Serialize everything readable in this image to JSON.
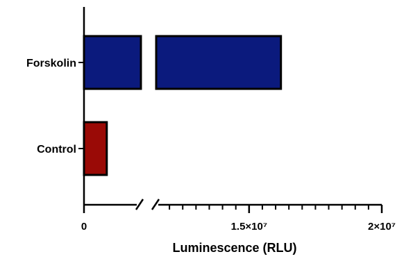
{
  "chart_data": {
    "type": "bar",
    "orientation": "horizontal",
    "categories": [
      "Forskolin",
      "Control"
    ],
    "values": [
      16200000,
      1200000
    ],
    "colors": [
      "#0b1a7d",
      "#9a0a06"
    ],
    "xlabel": "Luminescence (RLU)",
    "ylabel": "",
    "xlim": [
      0,
      20000000
    ],
    "axis_break": [
      3000000,
      11500000
    ],
    "x_tick_labels": [
      {
        "value": 0,
        "label": "0"
      },
      {
        "value": 15000000,
        "label": "1.5×10⁷"
      },
      {
        "value": 20000000,
        "label": "2×10⁷"
      }
    ],
    "grid": false,
    "legend": "none"
  }
}
